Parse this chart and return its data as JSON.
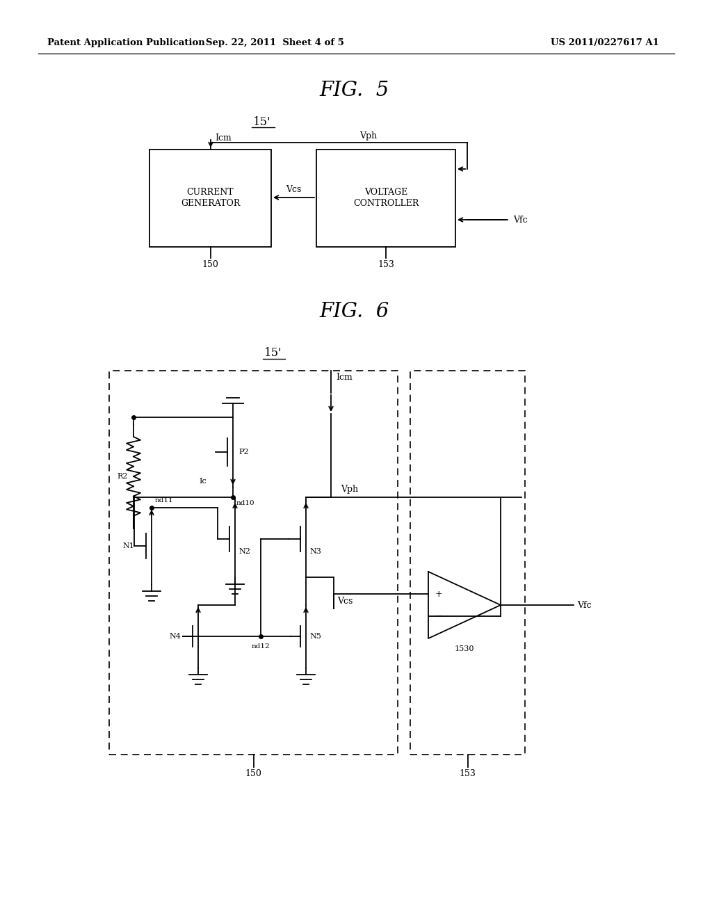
{
  "header_left": "Patent Application Publication",
  "header_mid": "Sep. 22, 2011  Sheet 4 of 5",
  "header_right": "US 2011/0227617 A1",
  "fig5_title": "FIG.  5",
  "fig6_title": "FIG.  6",
  "bg_color": "#ffffff",
  "line_color": "#000000"
}
